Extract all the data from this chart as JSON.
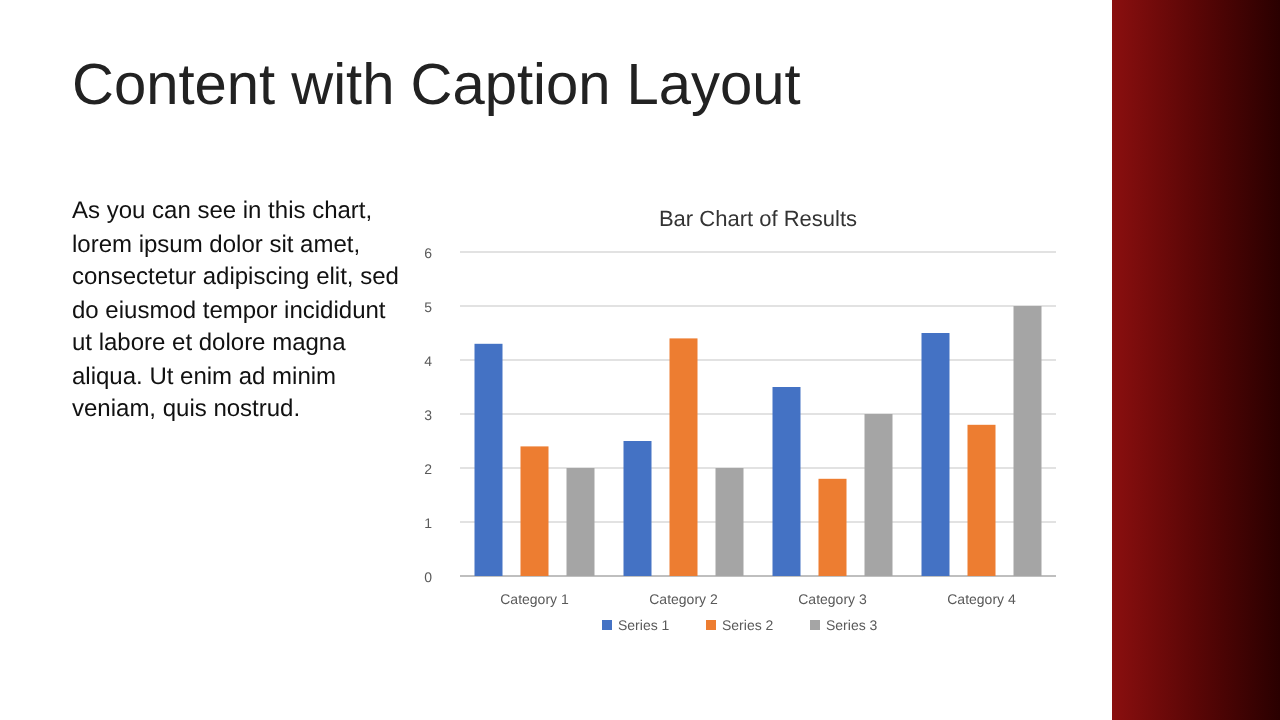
{
  "chart_data": {
    "type": "bar",
    "title": "Bar Chart of Results",
    "annotations": [
      "Content with Caption Layout",
      "As you can see in this chart, lorem ipsum dolor sit amet, consectetur adipiscing elit, sed do eiusmod tempor incididunt ut labore et dolore magna aliqua. Ut enim ad minim veniam, quis nostrud."
    ],
    "categories": [
      "Category 1",
      "Category 2",
      "Category 3",
      "Category 4"
    ],
    "series": [
      {
        "name": "Series 1",
        "color": "#4472c4",
        "values": [
          4.3,
          2.5,
          3.5,
          4.5
        ]
      },
      {
        "name": "Series 2",
        "color": "#ed7d31",
        "values": [
          2.4,
          4.4,
          1.8,
          2.8
        ]
      },
      {
        "name": "Series 3",
        "color": "#a5a5a5",
        "values": [
          2,
          2,
          3,
          5
        ]
      }
    ],
    "ylim": [
      0,
      6
    ],
    "yticks": [
      0,
      1,
      2,
      3,
      4,
      5,
      6
    ],
    "grid": "y",
    "legend": "bottom"
  }
}
